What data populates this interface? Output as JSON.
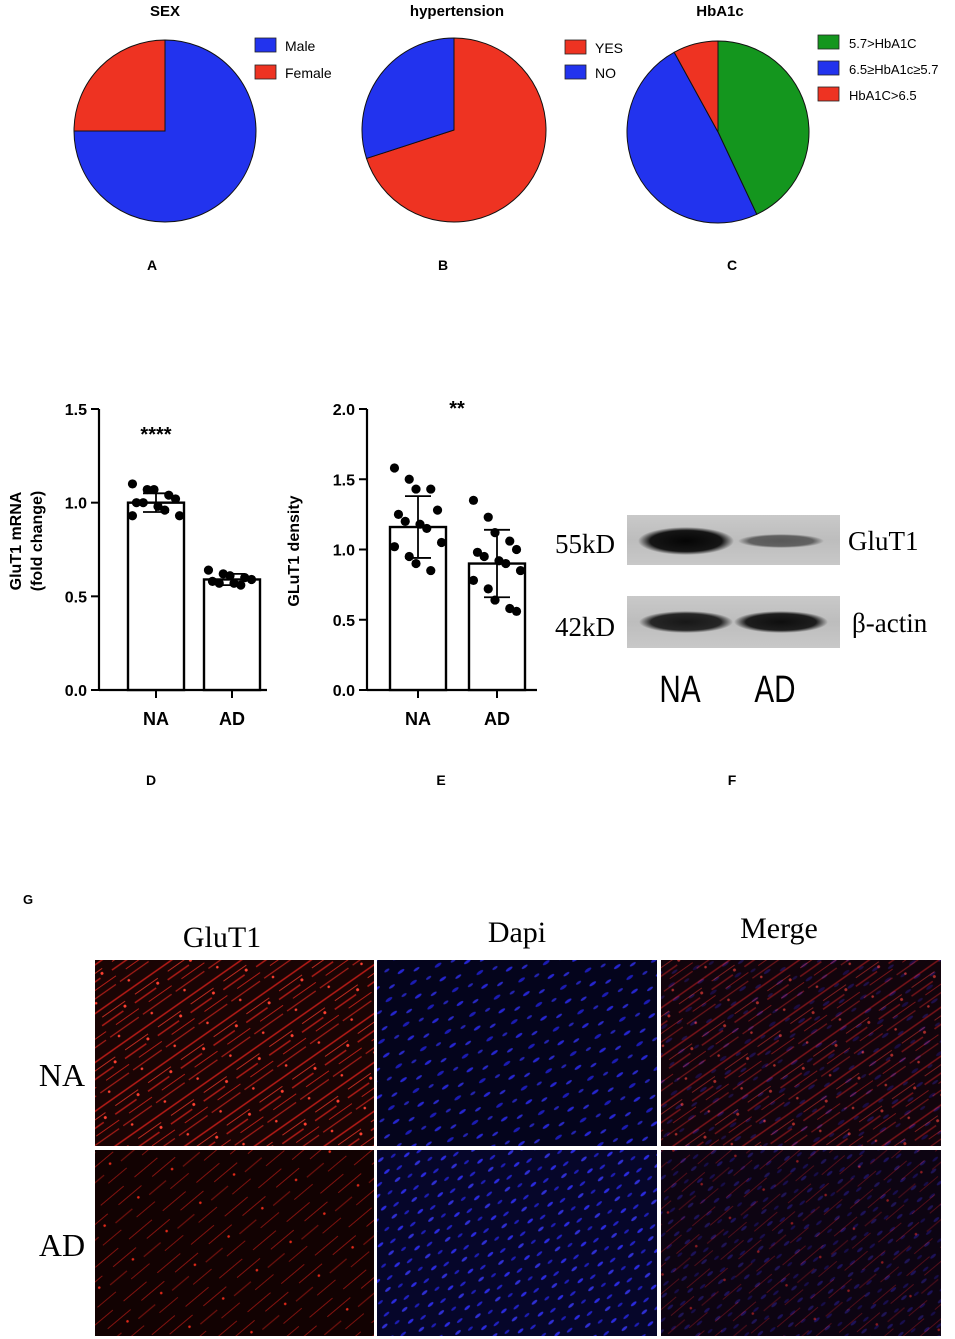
{
  "panel_letters": {
    "a": "A",
    "b": "B",
    "c": "C",
    "d": "D",
    "e": "E",
    "f": "F",
    "g": "G"
  },
  "chart_data": [
    {
      "id": "sex",
      "type": "pie",
      "title": "SEX",
      "slices": [
        {
          "label": "Male",
          "value": 75,
          "color": "#2233ee"
        },
        {
          "label": "Female",
          "value": 25,
          "color": "#ee3322"
        }
      ],
      "legend": "right"
    },
    {
      "id": "hypertension",
      "type": "pie",
      "title": "hypertension",
      "slices": [
        {
          "label": "YES",
          "value": 70,
          "color": "#ee3322"
        },
        {
          "label": "NO",
          "value": 30,
          "color": "#2233ee"
        }
      ],
      "legend": "right"
    },
    {
      "id": "hba1c",
      "type": "pie",
      "title": "HbA1c",
      "slices": [
        {
          "label": "5.7>HbA1C",
          "value": 43,
          "color": "#14961e"
        },
        {
          "label": "6.5≥HbA1c≥5.7",
          "value": 49,
          "color": "#2233ee"
        },
        {
          "label": "HbA1C>6.5",
          "value": 8,
          "color": "#ee3322"
        }
      ],
      "legend": "right"
    },
    {
      "id": "mrna",
      "type": "bar",
      "ylabel": [
        "GluT1 mRNA",
        "(fold change)"
      ],
      "ylim": [
        0,
        1.5
      ],
      "yticks": [
        "0.0",
        "0.5",
        "1.0",
        "1.5"
      ],
      "ytick_values": [
        0,
        0.5,
        1.0,
        1.5
      ],
      "categories": [
        "NA",
        "AD"
      ],
      "values": [
        1.0,
        0.59
      ],
      "sd": [
        0.05,
        0.03
      ],
      "points": [
        [
          1.1,
          1.07,
          1.07,
          1.04,
          1.02,
          1.0,
          1.0,
          0.98,
          0.96,
          0.93,
          0.93
        ],
        [
          0.64,
          0.62,
          0.61,
          0.6,
          0.59,
          0.58,
          0.57,
          0.57,
          0.56
        ]
      ],
      "significance": "****"
    },
    {
      "id": "density",
      "type": "bar",
      "ylabel": [
        "GLuT1 density"
      ],
      "ylim": [
        0,
        2.0
      ],
      "yticks": [
        "0.0",
        "0.5",
        "1.0",
        "1.5",
        "2.0"
      ],
      "ytick_values": [
        0,
        0.5,
        1.0,
        1.5,
        2.0
      ],
      "categories": [
        "NA",
        "AD"
      ],
      "values": [
        1.16,
        0.9
      ],
      "sd": [
        0.22,
        0.24
      ],
      "points": [
        [
          1.58,
          1.5,
          1.43,
          1.43,
          1.28,
          1.25,
          1.2,
          1.18,
          1.15,
          1.05,
          1.02,
          0.95,
          0.9,
          0.85
        ],
        [
          1.35,
          1.23,
          1.12,
          1.06,
          1.0,
          0.98,
          0.95,
          0.92,
          0.9,
          0.85,
          0.78,
          0.72,
          0.64,
          0.58,
          0.56
        ]
      ],
      "significance": "**"
    }
  ],
  "western_blot": {
    "rows": [
      {
        "kd": "55kD",
        "protein": "GluT1"
      },
      {
        "kd": "42kD",
        "protein": "β-actin"
      }
    ],
    "lanes": [
      "NA",
      "AD"
    ],
    "band_intensity": [
      [
        1.0,
        0.55
      ],
      [
        0.9,
        0.95
      ]
    ]
  },
  "immunofluorescence": {
    "columns": [
      "GluT1",
      "Dapi",
      "Merge"
    ],
    "rows": [
      "NA",
      "AD"
    ]
  }
}
